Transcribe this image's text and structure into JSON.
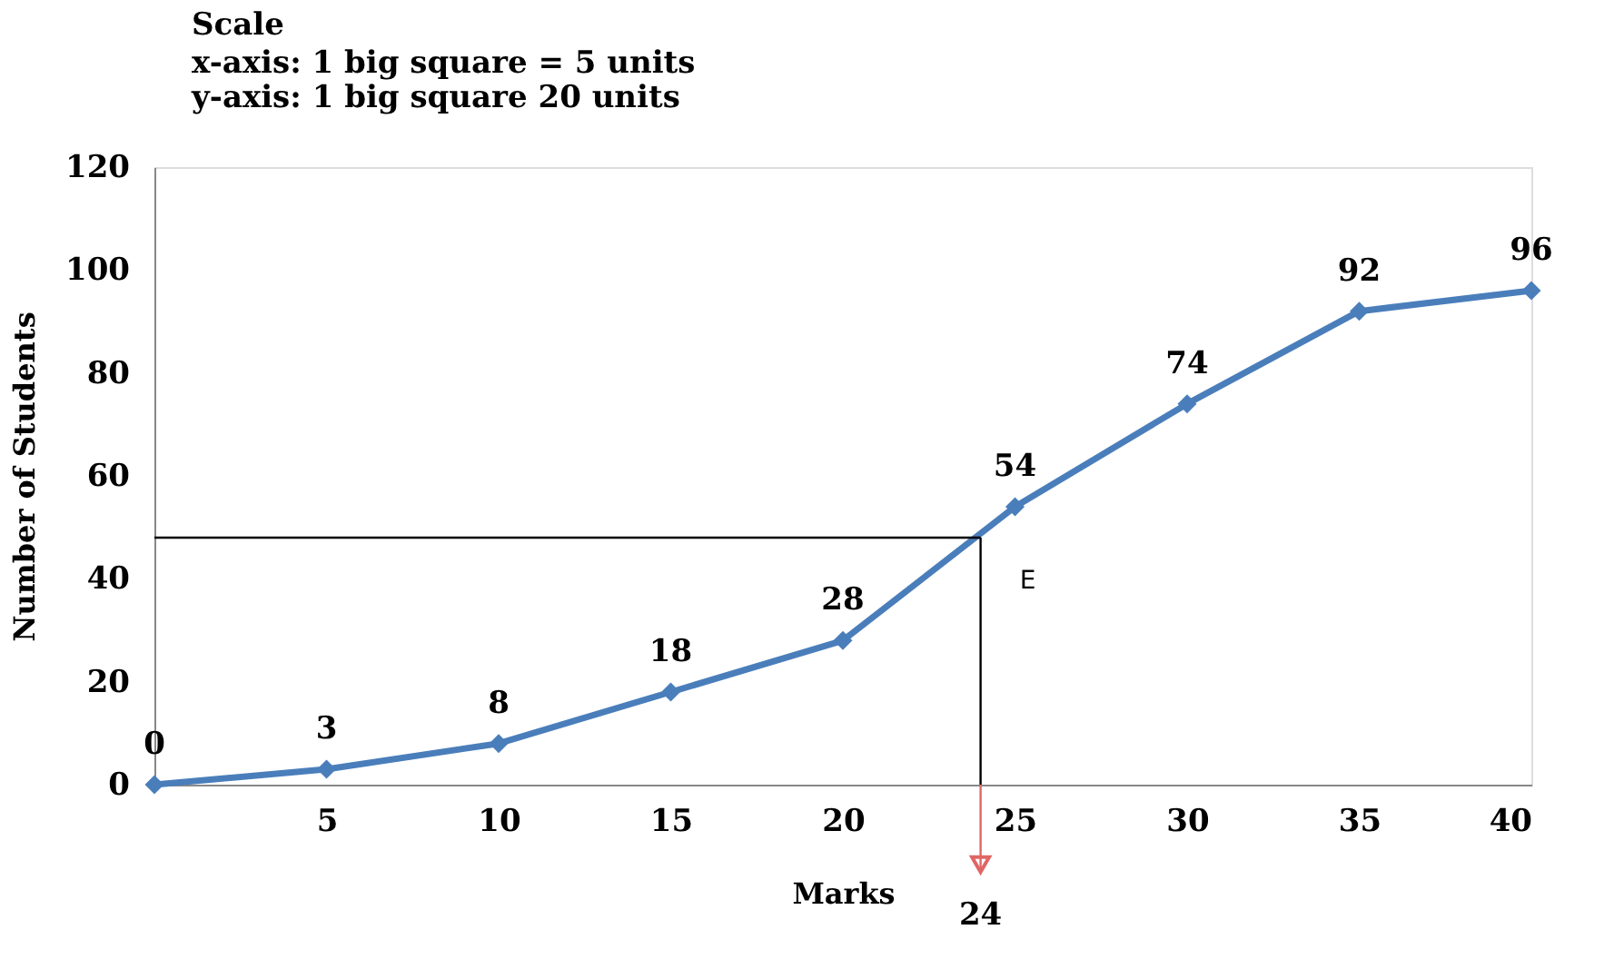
{
  "chart_data": {
    "type": "line",
    "title": "Scale",
    "subtitle": "x-axis: 1 big square = 5 units\ny-axis: 1 big square 20 units",
    "xlabel": "Marks",
    "ylabel": "Number of Students",
    "x": [
      0,
      5,
      10,
      15,
      20,
      25,
      30,
      35,
      40
    ],
    "series": [
      {
        "color": "#4a7ebb",
        "values": [
          0,
          3,
          8,
          18,
          28,
          54,
          74,
          92,
          96
        ]
      }
    ],
    "xlim": [
      0,
      40
    ],
    "xticks": [
      5,
      10,
      15,
      20,
      25,
      30,
      35,
      40
    ],
    "ylim": [
      0,
      120
    ],
    "yticks": [
      0,
      20,
      40,
      60,
      80,
      100,
      120
    ],
    "marker": "diamond",
    "data_labels": true,
    "grid": false,
    "ref_lines": [
      {
        "axis": "y",
        "value": 48,
        "color": "#000000"
      },
      {
        "axis": "x",
        "value": 24,
        "label": "24",
        "color": "#000000"
      }
    ],
    "annotations": [
      {
        "text": "E",
        "x": 24,
        "y": 48
      }
    ]
  }
}
